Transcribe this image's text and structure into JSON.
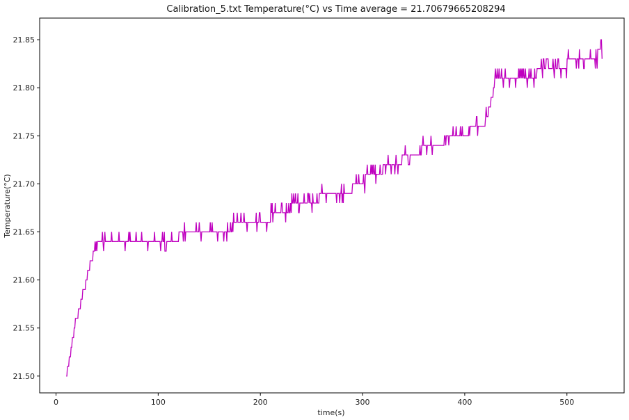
{
  "chart_data": {
    "type": "line",
    "title": "Calibration_5.txt  Temperature(°C) vs Time  average = 21.70679665208294",
    "xlabel": "time(s)",
    "ylabel": "Temperature(°C)",
    "xlim": [
      -16,
      556
    ],
    "ylim": [
      21.4825,
      21.8725
    ],
    "xticks": [
      0,
      100,
      200,
      300,
      400,
      500
    ],
    "yticks": [
      21.5,
      21.55,
      21.6,
      21.65,
      21.7,
      21.75,
      21.8,
      21.85
    ],
    "xtick_labels": [
      "0",
      "100",
      "200",
      "300",
      "400",
      "500"
    ],
    "ytick_labels": [
      "21.50",
      "21.55",
      "21.60",
      "21.65",
      "21.70",
      "21.75",
      "21.80",
      "21.85"
    ],
    "grid": false,
    "legend": "none",
    "series": [
      {
        "color": "#bf00bf",
        "x": [
          10,
          12,
          15,
          18,
          20,
          23,
          26,
          30,
          33,
          36,
          38,
          42,
          50,
          60,
          80,
          95,
          100,
          120,
          150,
          180,
          200,
          220,
          230,
          250,
          270,
          290,
          300,
          310,
          330,
          350,
          360,
          380,
          395,
          405,
          420,
          423,
          427,
          430,
          450,
          470,
          490,
          500,
          520,
          530,
          535
        ],
        "y": [
          21.5,
          21.51,
          21.53,
          21.55,
          21.56,
          21.57,
          21.585,
          21.6,
          21.615,
          21.625,
          21.632,
          21.637,
          21.637,
          21.637,
          21.637,
          21.637,
          21.642,
          21.645,
          21.652,
          21.656,
          21.662,
          21.668,
          21.675,
          21.682,
          21.69,
          21.695,
          21.703,
          21.71,
          21.72,
          21.732,
          21.736,
          21.745,
          21.748,
          21.755,
          21.765,
          21.775,
          21.79,
          21.805,
          21.807,
          21.815,
          21.82,
          21.825,
          21.83,
          21.835,
          21.84
        ]
      }
    ]
  }
}
